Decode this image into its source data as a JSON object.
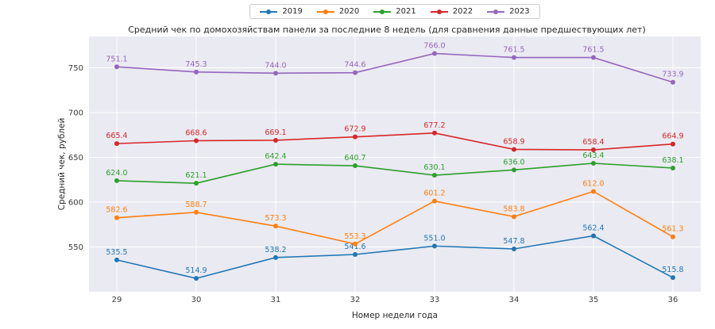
{
  "chart_data": {
    "type": "line",
    "title": "Средний чек по домохозяйствам панели за последние 8 недель (для сравнения данные предшествующих лет)",
    "xlabel": "Номер недели года",
    "ylabel": "Средний чек, рублей",
    "categories": [
      29,
      30,
      31,
      32,
      33,
      34,
      35,
      36
    ],
    "series": [
      {
        "name": "2019",
        "color": "#1f77b4",
        "values": [
          535.5,
          514.9,
          538.2,
          541.6,
          551.0,
          547.8,
          562.4,
          515.8
        ]
      },
      {
        "name": "2020",
        "color": "#ff7f0e",
        "values": [
          582.6,
          588.7,
          573.3,
          553.3,
          601.2,
          583.8,
          612.0,
          561.3
        ]
      },
      {
        "name": "2021",
        "color": "#2ca02c",
        "values": [
          624.0,
          621.1,
          642.4,
          640.7,
          630.1,
          636.0,
          643.4,
          638.1
        ]
      },
      {
        "name": "2022",
        "color": "#d62728",
        "values": [
          665.4,
          668.6,
          669.1,
          672.9,
          677.2,
          658.9,
          658.4,
          664.9
        ]
      },
      {
        "name": "2023",
        "color": "#9467bd",
        "values": [
          751.1,
          745.3,
          744.0,
          744.6,
          766.0,
          761.5,
          761.5,
          733.9
        ]
      }
    ],
    "yticks": [
      550,
      600,
      650,
      700,
      750
    ],
    "ylim": [
      500,
      785
    ],
    "grid": true,
    "legend_position": "top",
    "plot_bg": "#eaeaf2",
    "gridline_color": "#ffffff",
    "tick_color": "#3a3a3a"
  }
}
